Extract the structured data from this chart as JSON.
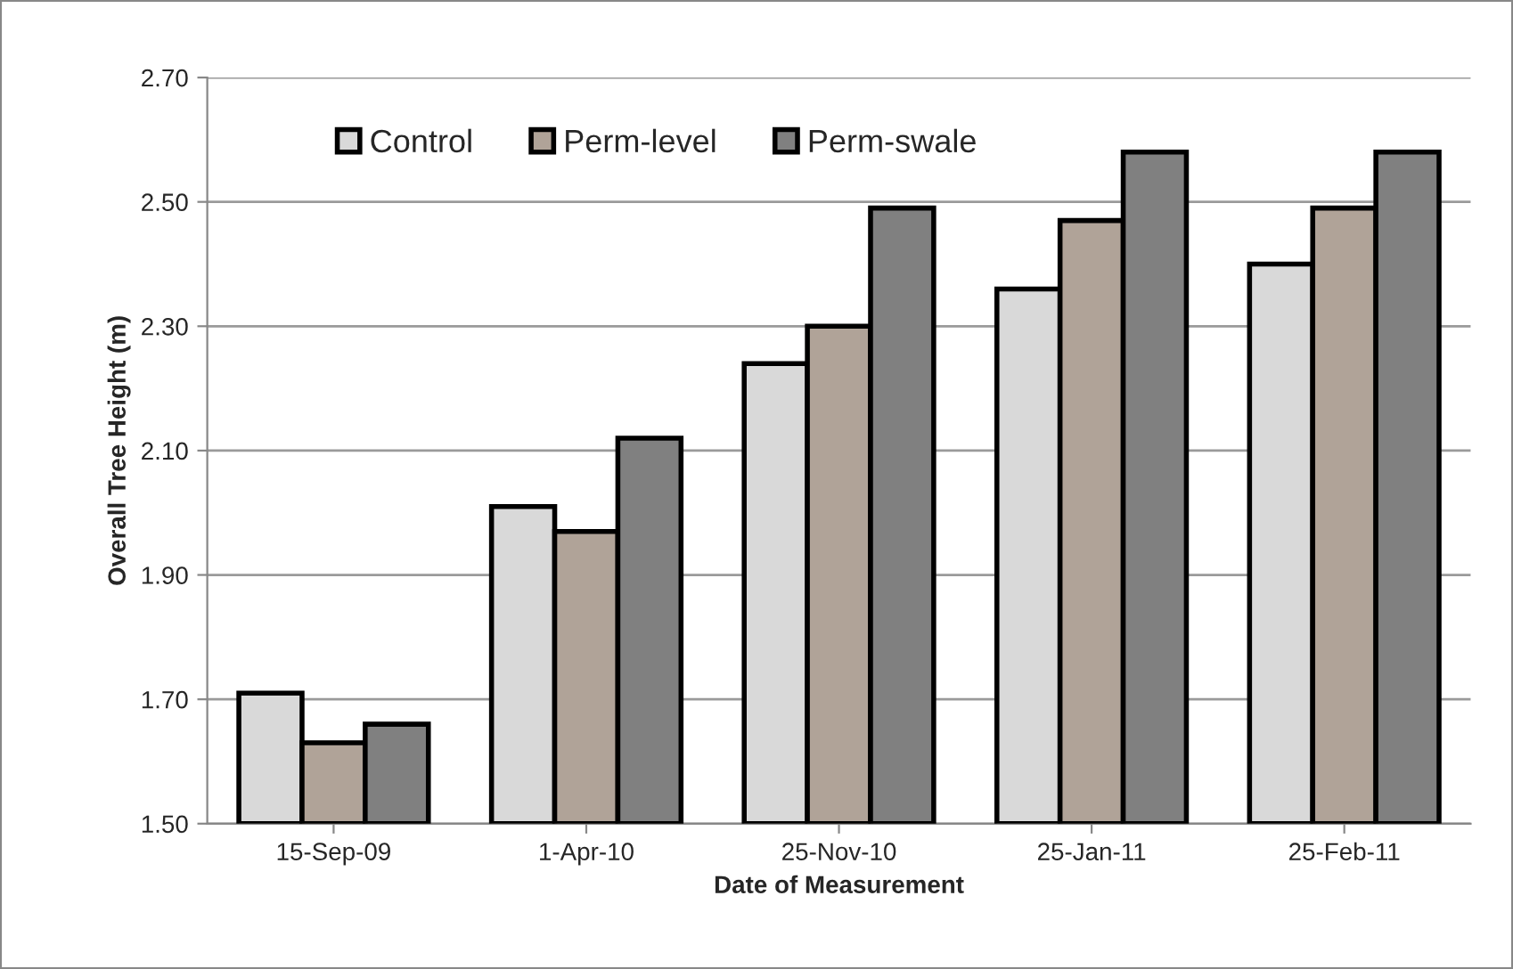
{
  "chart_data": {
    "type": "bar",
    "xlabel": "Date of Measurement",
    "ylabel": "Overall Tree Height (m)",
    "categories": [
      "15-Sep-09",
      "1-Apr-10",
      "25-Nov-10",
      "25-Jan-11",
      "25-Feb-11"
    ],
    "series": [
      {
        "name": "Control",
        "color": "#d9d9d9",
        "values": [
          1.71,
          2.01,
          2.24,
          2.36,
          2.4
        ]
      },
      {
        "name": "Perm-level",
        "color": "#b0a398",
        "values": [
          1.63,
          1.97,
          2.3,
          2.47,
          2.49
        ]
      },
      {
        "name": "Perm-swale",
        "color": "#808080",
        "values": [
          1.66,
          2.12,
          2.49,
          2.58,
          2.58
        ]
      }
    ],
    "ylim": [
      1.5,
      2.7
    ],
    "yticks": [
      {
        "value": 1.5,
        "label": "1.50"
      },
      {
        "value": 1.7,
        "label": "1.70"
      },
      {
        "value": 1.9,
        "label": "1.90"
      },
      {
        "value": 2.1,
        "label": "2.10"
      },
      {
        "value": 2.3,
        "label": "2.30"
      },
      {
        "value": 2.5,
        "label": "2.50"
      },
      {
        "value": 2.7,
        "label": "2.70"
      }
    ],
    "grid": "y",
    "legend": "top left"
  }
}
